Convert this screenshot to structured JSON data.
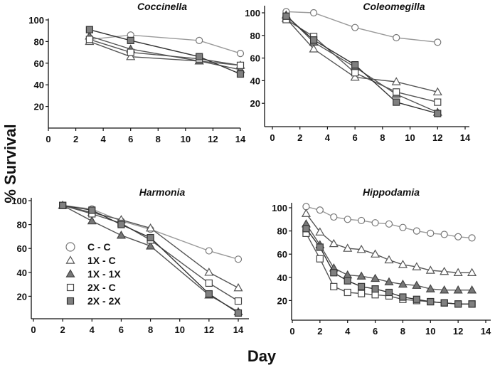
{
  "chart_data": {
    "type": "line",
    "xlabel": "Day",
    "ylabel": "% Survival",
    "legend": {
      "placement": "inside Harmonia panel, lower-left",
      "entries": [
        {
          "key": "cc",
          "label": "C - C"
        },
        {
          "key": "1xc",
          "label": "1X - C"
        },
        {
          "key": "1x1x",
          "label": "1X - 1X"
        },
        {
          "key": "2xc",
          "label": "2X - C"
        },
        {
          "key": "2x2x",
          "label": "2X - 2X"
        }
      ]
    },
    "styles": {
      "cc": {
        "marker": "circle",
        "fill": "#ffffff",
        "stroke": "#777777",
        "line": "#9a9a9a"
      },
      "1xc": {
        "marker": "triangle",
        "fill": "#ffffff",
        "stroke": "#555555",
        "line": "#555555"
      },
      "1x1x": {
        "marker": "triangle",
        "fill": "#777777",
        "stroke": "#444444",
        "line": "#555555"
      },
      "2xc": {
        "marker": "square",
        "fill": "#ffffff",
        "stroke": "#444444",
        "line": "#555555"
      },
      "2x2x": {
        "marker": "square",
        "fill": "#808080",
        "stroke": "#333333",
        "line": "#333333"
      }
    },
    "panels": [
      {
        "title": "Coccinella",
        "xlim": [
          0,
          14
        ],
        "ylim": [
          0,
          100
        ],
        "xticks": [
          0,
          2,
          4,
          6,
          8,
          10,
          12,
          14
        ],
        "yticks": [
          20,
          40,
          60,
          80,
          100
        ],
        "series": [
          {
            "key": "cc",
            "x": [
              3,
              6,
              11,
              14
            ],
            "y": [
              82,
              86,
              81,
              69
            ]
          },
          {
            "key": "1xc",
            "x": [
              3,
              6,
              11,
              14
            ],
            "y": [
              80,
              66,
              62,
              58
            ]
          },
          {
            "key": "1x1x",
            "x": [
              3,
              6,
              11,
              14
            ],
            "y": [
              85,
              73,
              62,
              54
            ]
          },
          {
            "key": "2xc",
            "x": [
              3,
              6,
              11,
              14
            ],
            "y": [
              82,
              70,
              64,
              58
            ]
          },
          {
            "key": "2x2x",
            "x": [
              3,
              6,
              11,
              14
            ],
            "y": [
              91,
              81,
              66,
              50
            ]
          }
        ]
      },
      {
        "title": "Coleomegilla",
        "xlim": [
          0,
          14
        ],
        "ylim": [
          0,
          100
        ],
        "xticks": [
          0,
          2,
          4,
          6,
          8,
          10,
          12,
          14
        ],
        "yticks": [
          20,
          40,
          60,
          80,
          100
        ],
        "series": [
          {
            "key": "cc",
            "x": [
              1,
              3,
              6,
              9,
              12
            ],
            "y": [
              101,
              100,
              87,
              78,
              74
            ]
          },
          {
            "key": "1xc",
            "x": [
              1,
              3,
              6,
              9,
              12
            ],
            "y": [
              95,
              68,
              43,
              39,
              30
            ]
          },
          {
            "key": "1x1x",
            "x": [
              1,
              3,
              6,
              9,
              12
            ],
            "y": [
              98,
              74,
              52,
              28,
              12
            ]
          },
          {
            "key": "2xc",
            "x": [
              1,
              3,
              6,
              9,
              12
            ],
            "y": [
              94,
              79,
              47,
              30,
              21
            ]
          },
          {
            "key": "2x2x",
            "x": [
              1,
              3,
              6,
              9,
              12
            ],
            "y": [
              97,
              76,
              54,
              21,
              11
            ]
          }
        ]
      },
      {
        "title": "Harmonia",
        "xlim": [
          0,
          14
        ],
        "ylim": [
          0,
          100
        ],
        "xticks": [
          0,
          2,
          4,
          6,
          8,
          10,
          12,
          14
        ],
        "yticks": [
          20,
          40,
          60,
          80,
          100
        ],
        "series": [
          {
            "key": "cc",
            "x": [
              2,
              4,
              6,
              8,
              12,
              14
            ],
            "y": [
              96,
              93,
              83,
              76,
              58,
              51
            ]
          },
          {
            "key": "1xc",
            "x": [
              2,
              4,
              6,
              8,
              12,
              14
            ],
            "y": [
              96,
              90,
              84,
              77,
              40,
              27
            ]
          },
          {
            "key": "1x1x",
            "x": [
              2,
              4,
              6,
              8,
              12,
              14
            ],
            "y": [
              96,
              83,
              71,
              62,
              21,
              7
            ]
          },
          {
            "key": "2xc",
            "x": [
              2,
              4,
              6,
              8,
              12,
              14
            ],
            "y": [
              96,
              89,
              81,
              67,
              31,
              16
            ]
          },
          {
            "key": "2x2x",
            "x": [
              2,
              4,
              6,
              8,
              12,
              14
            ],
            "y": [
              96,
              92,
              80,
              69,
              22,
              6
            ]
          }
        ]
      },
      {
        "title": "Hippodamia",
        "xlim": [
          0,
          14
        ],
        "ylim": [
          0,
          100
        ],
        "xticks": [
          0,
          2,
          4,
          6,
          8,
          10,
          12,
          14
        ],
        "yticks": [
          20,
          40,
          60,
          80,
          100
        ],
        "series": [
          {
            "key": "cc",
            "x": [
              1,
              2,
              3,
              4,
              5,
              6,
              7,
              8,
              9,
              10,
              11,
              12,
              13
            ],
            "y": [
              101,
              98,
              92,
              90,
              89,
              87,
              86,
              83,
              80,
              78,
              77,
              75,
              74
            ]
          },
          {
            "key": "1xc",
            "x": [
              1,
              2,
              3,
              4,
              5,
              6,
              7,
              8,
              9,
              10,
              11,
              12,
              13
            ],
            "y": [
              95,
              79,
              69,
              65,
              64,
              60,
              55,
              51,
              49,
              46,
              45,
              44,
              44
            ]
          },
          {
            "key": "1x1x",
            "x": [
              1,
              2,
              3,
              4,
              5,
              6,
              7,
              8,
              9,
              10,
              11,
              12,
              13
            ],
            "y": [
              86,
              68,
              48,
              42,
              41,
              39,
              36,
              34,
              33,
              30,
              29,
              29,
              29
            ]
          },
          {
            "key": "2xc",
            "x": [
              1,
              2,
              3,
              4,
              5,
              6,
              7,
              8,
              9,
              10,
              11,
              12,
              13
            ],
            "y": [
              78,
              56,
              32,
              27,
              26,
              25,
              24,
              21,
              20,
              19,
              18,
              17,
              17
            ]
          },
          {
            "key": "2x2x",
            "x": [
              1,
              2,
              3,
              4,
              5,
              6,
              7,
              8,
              9,
              10,
              11,
              12,
              13
            ],
            "y": [
              82,
              66,
              44,
              37,
              32,
              30,
              27,
              23,
              21,
              19,
              18,
              17,
              17
            ]
          }
        ]
      }
    ]
  }
}
